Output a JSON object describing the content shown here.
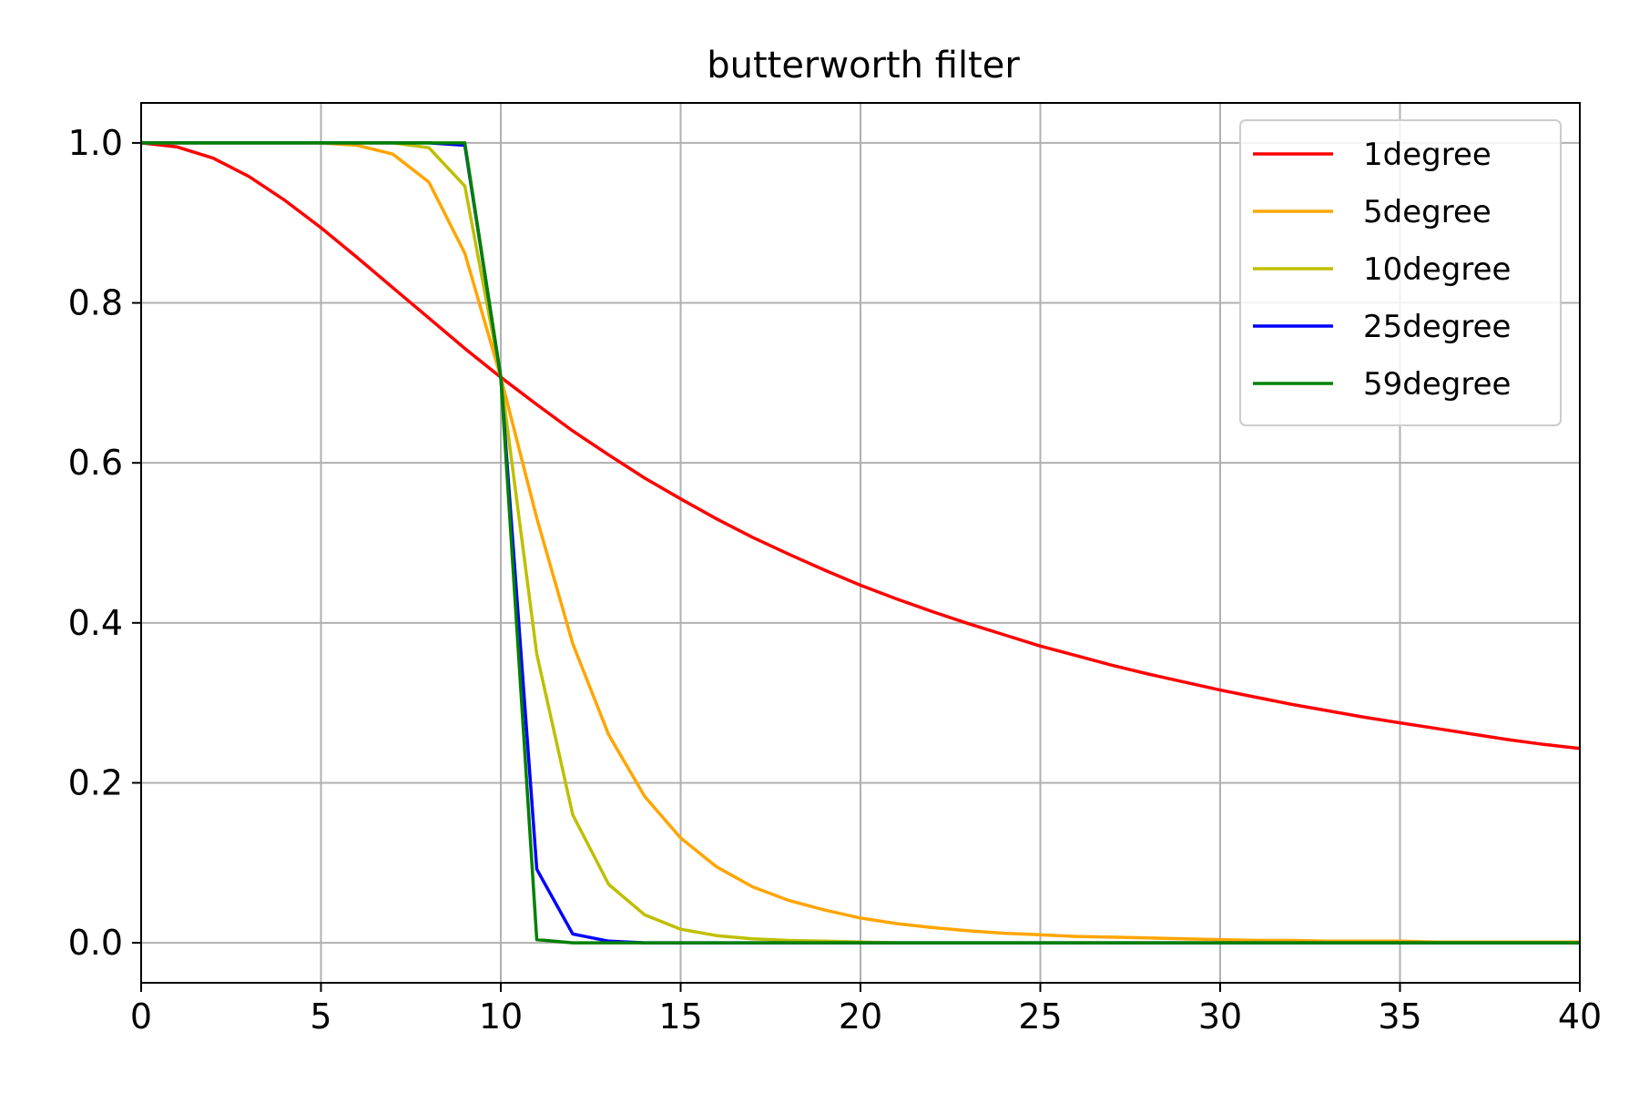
{
  "chart_data": {
    "type": "line",
    "title": "butterworth filter",
    "xlabel": "",
    "ylabel": "",
    "xlim": [
      0,
      40
    ],
    "ylim": [
      -0.05,
      1.05
    ],
    "xticks": [
      0,
      5,
      10,
      15,
      20,
      25,
      30,
      35,
      40
    ],
    "xtick_labels": [
      "0",
      "5",
      "10",
      "15",
      "20",
      "25",
      "30",
      "35",
      "40"
    ],
    "yticks": [
      0.0,
      0.2,
      0.4,
      0.6,
      0.8,
      1.0
    ],
    "ytick_labels": [
      "0.0",
      "0.2",
      "0.4",
      "0.6",
      "0.8",
      "1.0"
    ],
    "grid": true,
    "legend_position": "top-right",
    "x": [
      0,
      1,
      2,
      3,
      4,
      5,
      6,
      7,
      8,
      9,
      10,
      11,
      12,
      13,
      14,
      15,
      16,
      17,
      18,
      19,
      20,
      21,
      22,
      23,
      24,
      25,
      26,
      27,
      28,
      29,
      30,
      31,
      32,
      33,
      34,
      35,
      36,
      37,
      38,
      39,
      40
    ],
    "series": [
      {
        "name": "1degree",
        "color": "#ff0000",
        "values": [
          1.0,
          0.995,
          0.981,
          0.958,
          0.928,
          0.894,
          0.857,
          0.819,
          0.781,
          0.743,
          0.707,
          0.673,
          0.64,
          0.61,
          0.581,
          0.555,
          0.53,
          0.507,
          0.486,
          0.466,
          0.447,
          0.43,
          0.414,
          0.399,
          0.385,
          0.371,
          0.359,
          0.347,
          0.336,
          0.326,
          0.316,
          0.307,
          0.298,
          0.29,
          0.282,
          0.275,
          0.268,
          0.261,
          0.254,
          0.248,
          0.243
        ]
      },
      {
        "name": "5degree",
        "color": "#ffa500",
        "values": [
          1.0,
          1.0,
          1.0,
          1.0,
          1.0,
          1.0,
          0.997,
          0.986,
          0.951,
          0.862,
          0.707,
          0.531,
          0.374,
          0.26,
          0.183,
          0.131,
          0.095,
          0.07,
          0.053,
          0.041,
          0.031,
          0.024,
          0.019,
          0.015,
          0.012,
          0.01,
          0.008,
          0.007,
          0.006,
          0.005,
          0.004,
          0.003,
          0.003,
          0.002,
          0.002,
          0.002,
          0.001,
          0.001,
          0.001,
          0.001,
          0.001
        ]
      },
      {
        "name": "10degree",
        "color": "#bfbf00",
        "values": [
          1.0,
          1.0,
          1.0,
          1.0,
          1.0,
          1.0,
          1.0,
          1.0,
          0.994,
          0.946,
          0.707,
          0.361,
          0.16,
          0.073,
          0.035,
          0.017,
          0.009,
          0.005,
          0.003,
          0.002,
          0.001,
          0.0,
          0.0,
          0.0,
          0.0,
          0.0,
          0.0,
          0.0,
          0.0,
          0.0,
          0.0,
          0.0,
          0.0,
          0.0,
          0.0,
          0.0,
          0.0,
          0.0,
          0.0,
          0.0,
          0.0
        ]
      },
      {
        "name": "25degree",
        "color": "#0000ff",
        "values": [
          1.0,
          1.0,
          1.0,
          1.0,
          1.0,
          1.0,
          1.0,
          1.0,
          1.0,
          0.997,
          0.707,
          0.092,
          0.011,
          0.002,
          0.0,
          0.0,
          0.0,
          0.0,
          0.0,
          0.0,
          0.0,
          0.0,
          0.0,
          0.0,
          0.0,
          0.0,
          0.0,
          0.0,
          0.0,
          0.0,
          0.0,
          0.0,
          0.0,
          0.0,
          0.0,
          0.0,
          0.0,
          0.0,
          0.0,
          0.0,
          0.0
        ]
      },
      {
        "name": "59degree",
        "color": "#008000",
        "values": [
          1.0,
          1.0,
          1.0,
          1.0,
          1.0,
          1.0,
          1.0,
          1.0,
          1.0,
          1.0,
          0.707,
          0.004,
          0.0,
          0.0,
          0.0,
          0.0,
          0.0,
          0.0,
          0.0,
          0.0,
          0.0,
          0.0,
          0.0,
          0.0,
          0.0,
          0.0,
          0.0,
          0.0,
          0.0,
          0.0,
          0.0,
          0.0,
          0.0,
          0.0,
          0.0,
          0.0,
          0.0,
          0.0,
          0.0,
          0.0,
          0.0
        ]
      }
    ]
  }
}
